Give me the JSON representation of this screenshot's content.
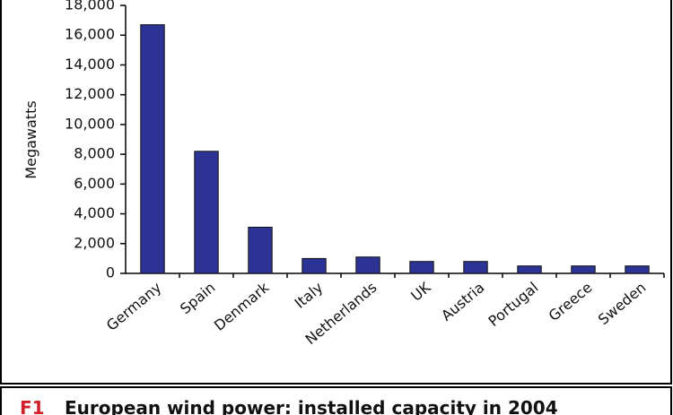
{
  "chart_data": {
    "type": "bar",
    "y_label": "Megawatts",
    "categories": [
      "Germany",
      "Spain",
      "Denmark",
      "Italy",
      "Netherlands",
      "UK",
      "Austria",
      "Portugal",
      "Greece",
      "Sweden"
    ],
    "values": [
      16700,
      8200,
      3100,
      1000,
      1100,
      800,
      800,
      500,
      500,
      500
    ],
    "color": "#2b3494",
    "ylim": [
      0,
      18000
    ],
    "yticks": [
      {
        "value": 0,
        "label": "0"
      },
      {
        "value": 2000,
        "label": "2,000"
      },
      {
        "value": 4000,
        "label": "4,000"
      },
      {
        "value": 6000,
        "label": "6,000"
      },
      {
        "value": 8000,
        "label": "8,000"
      },
      {
        "value": 10000,
        "label": "10,000"
      },
      {
        "value": 12000,
        "label": "12,000"
      },
      {
        "value": 14000,
        "label": "14,000"
      },
      {
        "value": 16000,
        "label": "16,000"
      },
      {
        "value": 18000,
        "label": "18,000"
      }
    ],
    "grid": false,
    "caption_number": "F1",
    "caption": "European wind power: installed capacity in 2004"
  }
}
